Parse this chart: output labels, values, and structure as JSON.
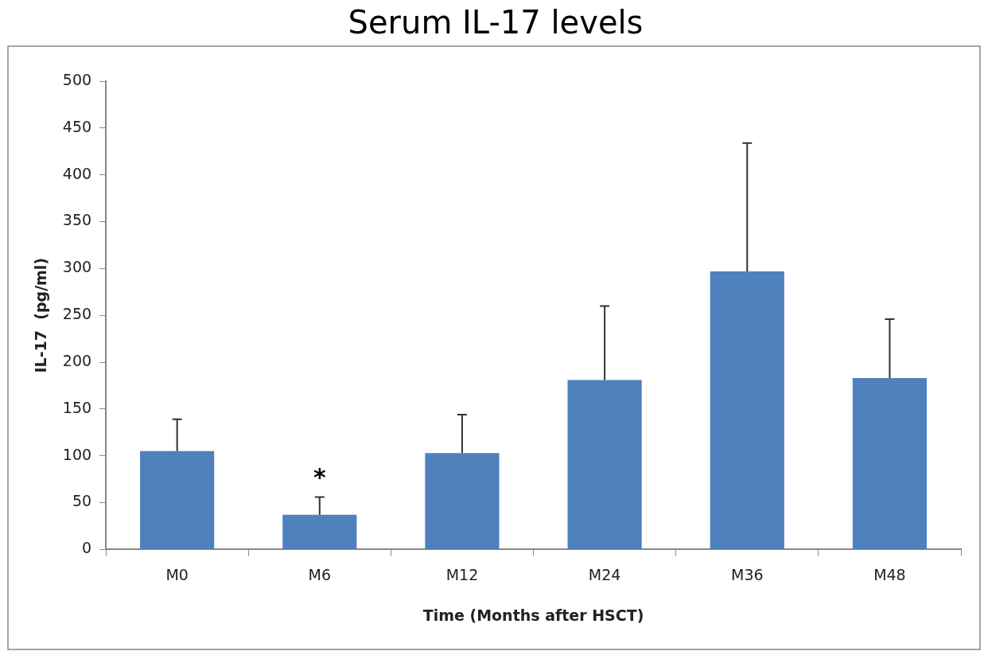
{
  "chart_data": {
    "type": "bar",
    "title": "Serum IL-17 levels",
    "xlabel": "Time (Months after HSCT)",
    "ylabel": "IL-17  (pg/ml)",
    "categories": [
      "M0",
      "M6",
      "M12",
      "M24",
      "M36",
      "M48"
    ],
    "values": [
      105,
      37,
      103,
      181,
      297,
      183
    ],
    "errors": [
      [
        105,
        139
      ],
      [
        37,
        56
      ],
      [
        103,
        144
      ],
      [
        181,
        260
      ],
      [
        297,
        434
      ],
      [
        183,
        246
      ]
    ],
    "color": "#4f81bd",
    "ylim": [
      0,
      500
    ],
    "yticks": [
      0,
      50,
      100,
      150,
      200,
      250,
      300,
      350,
      400,
      450,
      500
    ],
    "grid": false,
    "legend": false,
    "annotations": [
      "*"
    ]
  }
}
